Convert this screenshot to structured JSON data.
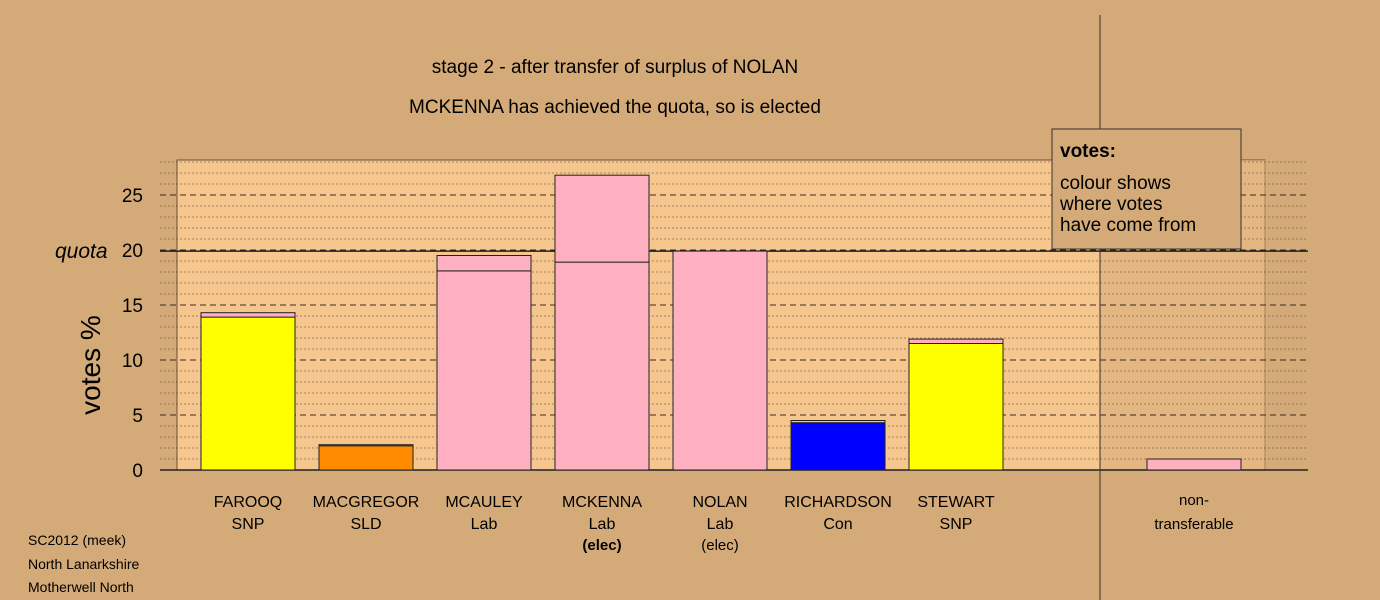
{
  "chart_data": {
    "type": "bar",
    "title": "stage 2 - after transfer of surplus of NOLAN",
    "subtitle": "MCKENNA has achieved the quota, so is elected",
    "ylabel": "votes %",
    "ylim": [
      0,
      28.3
    ],
    "yticks": [
      0,
      5,
      10,
      15,
      20,
      25
    ],
    "quota": 19.9,
    "quota_label": "quota",
    "candidates": [
      {
        "name": "FAROOQ",
        "party": "SNP",
        "status": "",
        "segments": [
          {
            "from": "own",
            "value": 13.9,
            "color": "#ffff00"
          },
          {
            "from": "NOLAN",
            "value": 0.4,
            "color": "#ffb0c0"
          }
        ]
      },
      {
        "name": "MACGREGOR",
        "party": "SLD",
        "status": "",
        "segments": [
          {
            "from": "own",
            "value": 2.2,
            "color": "#ff8c00"
          },
          {
            "from": "NOLAN",
            "value": 0.1,
            "color": "#ffb0c0"
          }
        ]
      },
      {
        "name": "MCAULEY",
        "party": "Lab",
        "status": "",
        "segments": [
          {
            "from": "own",
            "value": 18.1,
            "color": "#ffb0c0"
          },
          {
            "from": "NOLAN",
            "value": 1.4,
            "color": "#ffb0c0"
          }
        ]
      },
      {
        "name": "MCKENNA",
        "party": "Lab",
        "status": "(elec)",
        "status_bold": true,
        "segments": [
          {
            "from": "own",
            "value": 18.9,
            "color": "#ffb0c0"
          },
          {
            "from": "NOLAN",
            "value": 7.9,
            "color": "#ffb0c0"
          }
        ]
      },
      {
        "name": "NOLAN",
        "party": "Lab",
        "status": "(elec)",
        "status_bold": false,
        "segments": [
          {
            "from": "own",
            "value": 19.9,
            "color": "#ffb0c0"
          }
        ]
      },
      {
        "name": "RICHARDSON",
        "party": "Con",
        "status": "",
        "segments": [
          {
            "from": "own",
            "value": 4.3,
            "color": "#0000ff"
          },
          {
            "from": "NOLAN",
            "value": 0.2,
            "color": "#ffb0c0"
          }
        ]
      },
      {
        "name": "STEWART",
        "party": "SNP",
        "status": "",
        "segments": [
          {
            "from": "own",
            "value": 11.5,
            "color": "#ffff00"
          },
          {
            "from": "NOLAN",
            "value": 0.4,
            "color": "#ffb0c0"
          }
        ]
      }
    ],
    "non_transferable": {
      "label1": "non-",
      "label2": "transferable",
      "value": 1.0,
      "color": "#ffb0c0"
    },
    "legend": {
      "title": "votes:",
      "lines": [
        "colour shows",
        "where votes",
        "have come from"
      ],
      "placement": "top-right"
    },
    "colors": {
      "background": "#d4aa78",
      "plot_area": "#f5c68e",
      "grid": "#5a4030"
    }
  },
  "footer": [
    "SC2012 (meek)",
    "North Lanarkshire",
    "Motherwell North"
  ]
}
